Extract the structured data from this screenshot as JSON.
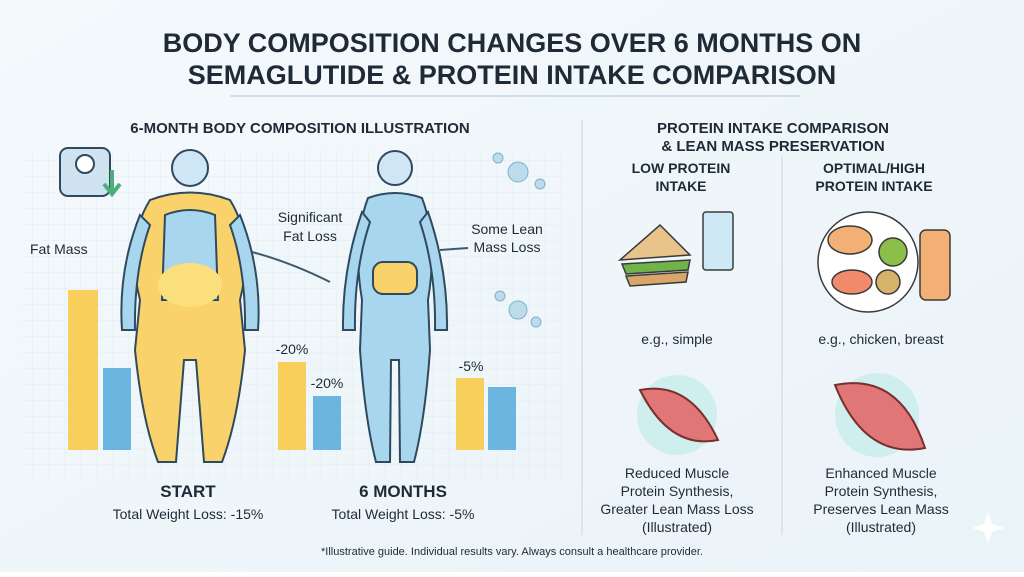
{
  "title": [
    "BODY COMPOSITION CHANGES OVER 6 MONTHS ON",
    "SEMAGLUTIDE & PROTEIN INTAKE COMPARISON"
  ],
  "left_panel": {
    "heading": "6-MONTH BODY COMPOSITION ILLUSTRATION",
    "fat_mass": "Fat Mass",
    "fat_loss": [
      "Significant",
      "Fat Loss"
    ],
    "lean_loss": [
      "Some Lean",
      "Mass Loss"
    ],
    "bar_labels": [
      "-20%",
      "-20%",
      "-5%"
    ],
    "stages": [
      {
        "name": "START",
        "weight_loss": "Total Weight Loss: -15%"
      },
      {
        "name": "6 MONTHS",
        "weight_loss": "Total Weight Loss: -5%"
      }
    ]
  },
  "right_panel": {
    "heading": [
      "PROTEIN INTAKE COMPARISON",
      "& LEAN MASS PRESERVATION"
    ],
    "columns": [
      {
        "title": [
          "LOW PROTEIN",
          "INTAKE"
        ],
        "example": "e.g., simple",
        "outcome": [
          "Reduced Muscle",
          "Protein Synthesis,",
          "Greater Lean Mass Loss",
          "(Illustrated)"
        ]
      },
      {
        "title": [
          "OPTIMAL/HIGH",
          "PROTEIN INTAKE"
        ],
        "example": "e.g., chicken, breast",
        "outcome": [
          "Enhanced Muscle",
          "Protein Synthesis,",
          "Preserves Lean Mass",
          "(Illustrated)"
        ]
      }
    ]
  },
  "footnote": "*Illustrative guide. Individual results vary. Always consult a healthcare provider."
}
